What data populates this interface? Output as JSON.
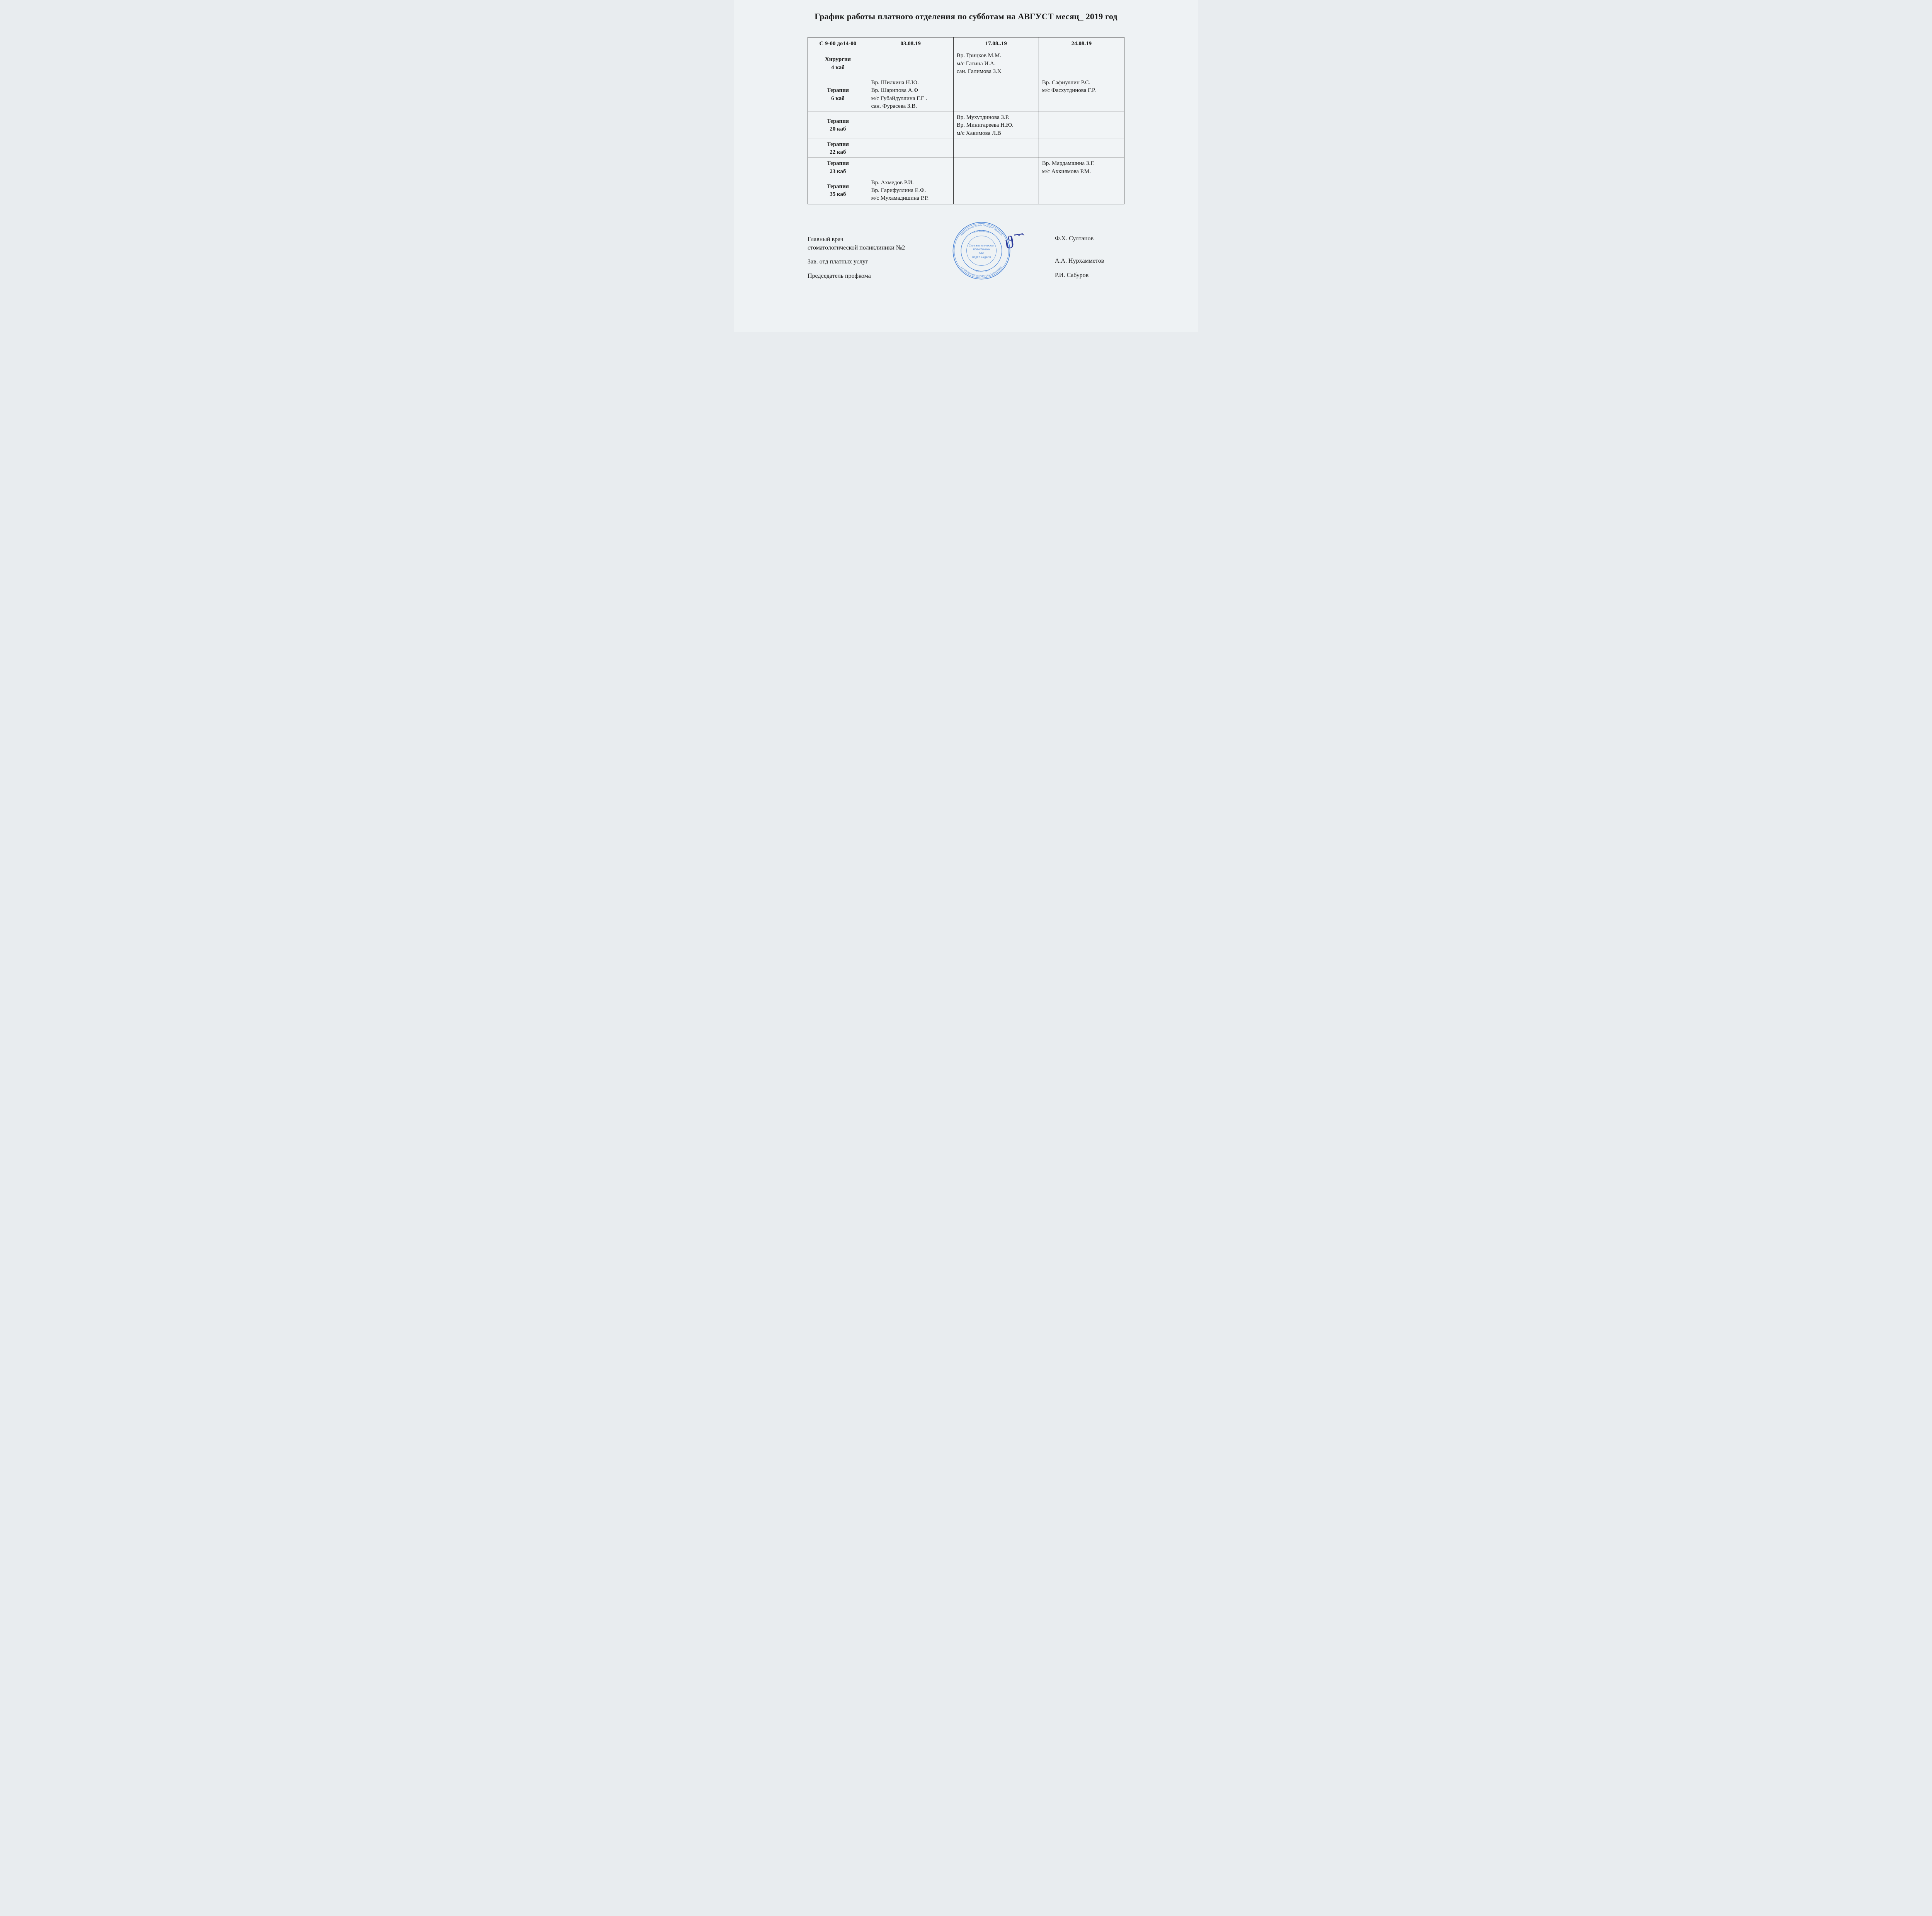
{
  "title": "График работы платного отделения по субботам на АВГУСТ месяц_ 2019 год",
  "table": {
    "columns": [
      "С 9-00 до14-00",
      "03.08.19",
      "17.08..19",
      "24.08.19"
    ],
    "col_widths_pct": [
      19,
      27,
      27,
      27
    ],
    "border_color": "#2b2b2b",
    "background_color": "#f1f4f6",
    "header_fontsize": 15,
    "cell_fontsize": 15,
    "rows": [
      {
        "label": "Хирургия\n4 каб",
        "cells": [
          "",
          "Вр. Грицков М.М.\nм/с Гатина И.А.\nсан. Галимова З.Х",
          ""
        ]
      },
      {
        "label": "Терапия\n6 каб",
        "cells": [
          "Вр. Шилкина Н.Ю.\nВр. Шарипова А.Ф\nм/с Губайдуллина Г.Г .\nсан. Фурасева З.В.",
          "",
          "Вр. Сафиуллин Р.С.\nм/с Фасхутдинова Г.Р."
        ]
      },
      {
        "label": "Терапия\n20 каб",
        "cells": [
          "",
          "Вр. Мухутдинова З.Р.\nВр. Минигареева Н.Ю.\nм/с Хакимова Л.В\n ",
          ""
        ]
      },
      {
        "label": "Терапия\n22 каб",
        "cells": [
          "",
          "",
          ""
        ]
      },
      {
        "label": "Терапия\n23 каб",
        "cells": [
          "",
          "",
          "Вр. Мардамшина З.Г.\nм/с Ахкиямова Р.М.\n "
        ]
      },
      {
        "label": "Терапия\n35 каб",
        "cells": [
          "Вр. Ахмедов Р.И.\nВр. Гарифуллина Е.Ф.\nм/с Мухамадишина Р.Р.\n ",
          "",
          ""
        ]
      }
    ]
  },
  "signatures": [
    {
      "role": "Главный врач\nстоматологической поликлиники №2",
      "name": "Ф.Х. Султанов"
    },
    {
      "role": "Зав. отд платных услуг",
      "name": "А.А. Нурхамметов"
    },
    {
      "role": "Председатель профкома",
      "name": "Р.И. Сабуров"
    }
  ],
  "stamp": {
    "color": "#2a6fd1",
    "lines": [
      "Стоматологическая",
      "поликлиника",
      "№2",
      "ОТДЕЛ КАДРОВ"
    ],
    "outer_text_top": "НАБЕРЕЖНЫЕ ЧЕЛНЫ ГОСУДАРСТВЕННОЕ",
    "outer_text_bottom": "МИНИСТЕРСТВО ЗДРАВООХРАНЕНИЯ РТ",
    "ogrn": "ОГРН 1021602016",
    "inn": "ИНН 1650043067"
  },
  "initials_scribble": "ϑ ᷆  ᷆"
}
